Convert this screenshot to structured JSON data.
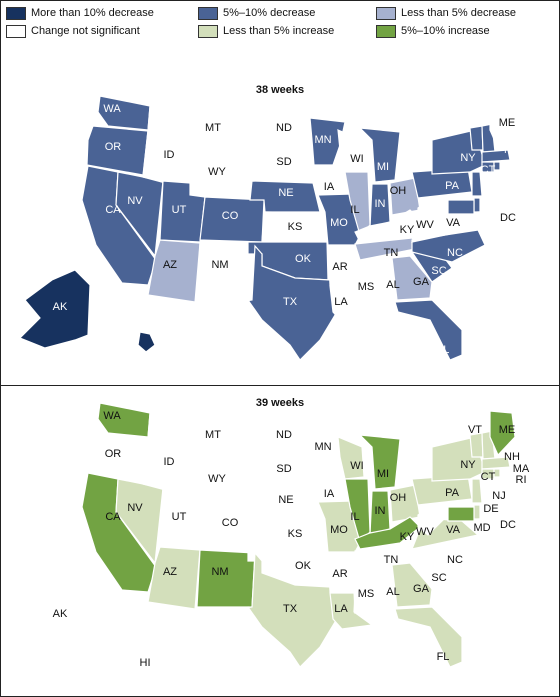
{
  "legend": {
    "items": [
      {
        "label": "More than 10% decrease",
        "color": "#17325f"
      },
      {
        "label": "5%–10% decrease",
        "color": "#4a6395"
      },
      {
        "label": "Less than 5% decrease",
        "color": "#a6b1cf"
      },
      {
        "label": "Change not significant",
        "color": "#ffffff"
      },
      {
        "label": "Less than 5% increase",
        "color": "#d3dfbb"
      },
      {
        "label": "5%–10% increase",
        "color": "#72a343"
      }
    ]
  },
  "panels": [
    {
      "title": "38 weeks",
      "categories": {
        "dec10": [
          "AK",
          "HI"
        ],
        "dec5_10": [
          "WA",
          "OR",
          "CA",
          "NV",
          "UT",
          "CO",
          "NE",
          "MN",
          "MO",
          "MI",
          "IN",
          "NY",
          "PA",
          "NC",
          "SC",
          "OK",
          "TX",
          "FL",
          "VT",
          "NH",
          "MA",
          "CT",
          "RI",
          "NJ",
          "DE",
          "MD"
        ],
        "dec5": [
          "AZ",
          "IL",
          "OH",
          "TN",
          "GA"
        ],
        "ns": [
          "ID",
          "MT",
          "WY",
          "ND",
          "SD",
          "KS",
          "IA",
          "WI",
          "NM",
          "AR",
          "LA",
          "MS",
          "AL",
          "KY",
          "WV",
          "VA",
          "ME",
          "DC"
        ]
      }
    },
    {
      "title": "39 weeks",
      "categories": {
        "inc5_10": [
          "WA",
          "CA",
          "NM",
          "IL",
          "IN",
          "MI",
          "KY",
          "ME",
          "MD"
        ],
        "inc5": [
          "NV",
          "AZ",
          "TX",
          "MO",
          "WI",
          "OH",
          "VA",
          "NY",
          "PA",
          "LA",
          "GA",
          "FL",
          "DE",
          "NJ",
          "CT",
          "RI",
          "MA",
          "VT",
          "NH"
        ],
        "ns": [
          "OR",
          "ID",
          "MT",
          "WY",
          "UT",
          "CO",
          "ND",
          "SD",
          "NE",
          "KS",
          "OK",
          "MN",
          "IA",
          "AR",
          "MS",
          "AL",
          "TN",
          "SC",
          "NC",
          "WV",
          "DC",
          "AK",
          "HI"
        ]
      }
    }
  ],
  "state_labels": [
    "WA",
    "OR",
    "CA",
    "NV",
    "ID",
    "MT",
    "WY",
    "UT",
    "CO",
    "AZ",
    "NM",
    "ND",
    "SD",
    "NE",
    "KS",
    "OK",
    "TX",
    "MN",
    "IA",
    "MO",
    "AR",
    "LA",
    "WI",
    "IL",
    "MI",
    "IN",
    "OH",
    "KY",
    "TN",
    "MS",
    "AL",
    "GA",
    "FL",
    "SC",
    "NC",
    "VA",
    "WV",
    "PA",
    "NY",
    "VT",
    "ME",
    "NH",
    "MA",
    "RI",
    "CT",
    "NJ",
    "DE",
    "MD",
    "DC",
    "AK",
    "HI"
  ]
}
